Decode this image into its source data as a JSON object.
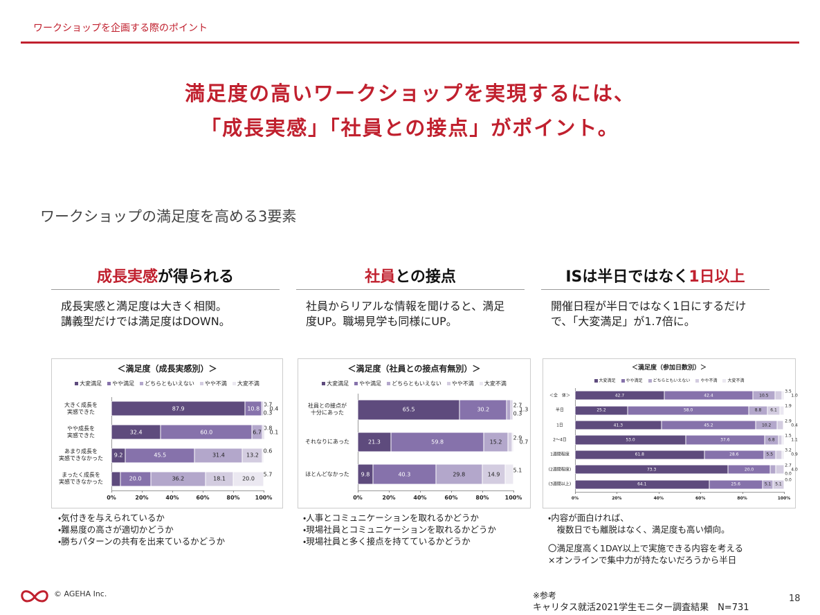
{
  "header": {
    "title": "ワークショップを企画する際のポイント"
  },
  "headline": [
    "満足度の高いワークショップを実現するには、",
    "「成長実感」「社員との接点」がポイント。"
  ],
  "section_title": "ワークショップの満足度を高める3要素",
  "columns": [
    {
      "heading": [
        {
          "text": "成長実感",
          "accent": true
        },
        {
          "text": "が得られる",
          "accent": false
        }
      ],
      "description": "成長実感と満足度は大きく相関。\n講義型だけでは満足度はDOWN。",
      "notes": [
        "・気付きを与えられているか",
        "・難易度の高さが適切かどうか",
        "・勝ちパターンの共有を出来ているかどうか"
      ]
    },
    {
      "heading": [
        {
          "text": "社員",
          "accent": true
        },
        {
          "text": "との接点",
          "accent": false
        }
      ],
      "description": "社員からリアルな情報を聞けると、満足度UP。職場見学も同様にUP。",
      "notes": [
        "・人事とコミュニケーションを取れるかどうか",
        "・現場社員とコミュニケーションを取れるかどうか",
        "・現場社員と多く接点を持てているかどうか"
      ]
    },
    {
      "heading": [
        {
          "text": "ISは半日ではなく",
          "accent": false
        },
        {
          "text": "1日以上",
          "accent": true
        }
      ],
      "description": "開催日程が半日ではなく1日にするだけで、「大変満足」が1.7倍に。",
      "notes": [
        "・内容が面白ければ、\n　複数日でも離脱はなく、満足度も高い傾向。",
        "〇満足度高く1DAY以上で実施できる内容を考える",
        "×オンラインで集中力が持たないだろうから半日"
      ]
    }
  ],
  "chart_data": [
    {
      "type": "bar",
      "orientation": "horizontal",
      "stacked": true,
      "title": "＜満足度（成長実感別）＞",
      "categories": [
        "大きく成長を\n実感できた",
        "やや成長を\n実感できた",
        "あまり成長を\n実感できなかった",
        "まったく成長を\n実感できなかった"
      ],
      "series": [
        {
          "name": "大変満足",
          "color": "#5e4b7d",
          "values": [
            87.9,
            32.4,
            9.2,
            5.7
          ],
          "value_labels": [
            "87.9",
            "32.4",
            "9.2",
            "5.7"
          ]
        },
        {
          "name": "やや満足",
          "color": "#8672ab",
          "values": [
            10.8,
            60,
            45.5,
            20
          ],
          "value_labels": [
            "10.8",
            "60.0",
            "45.5",
            "20.0"
          ]
        },
        {
          "name": "どちらともいえない",
          "color": "#b3a7cb",
          "values": [
            0.7,
            6.7,
            31.4,
            36.2
          ],
          "value_labels": [
            "0.7",
            "6.7",
            "31.4",
            "36.2"
          ]
        },
        {
          "name": "やや不満",
          "color": "#d3cce0",
          "values": [
            0.4,
            0.8,
            13.2,
            18.1
          ],
          "value_labels": [
            "0.4",
            "0.8",
            "13.2",
            "18.1"
          ]
        },
        {
          "name": "大変不満",
          "color": "#ebe8f1",
          "values": [
            0.3,
            0.1,
            0.6,
            20
          ],
          "value_labels": [
            "0.3",
            "0.1",
            "0.6",
            "20.0"
          ]
        }
      ],
      "xlim": [
        0,
        100
      ],
      "xticks": [
        {
          "value": 0,
          "label": "0%"
        },
        {
          "value": 20,
          "label": "20%"
        },
        {
          "value": 40,
          "label": "40%"
        },
        {
          "value": 60,
          "label": "60%"
        },
        {
          "value": 80,
          "label": "80%"
        },
        {
          "value": 100,
          "label": "100%"
        }
      ],
      "legend": "top"
    },
    {
      "type": "bar",
      "orientation": "horizontal",
      "stacked": true,
      "title": "＜満足度（社員との接点有無別）＞",
      "categories": [
        "社員との接点が\n十分にあった",
        "それなりにあった",
        "ほとんどなかった"
      ],
      "series": [
        {
          "name": "大変満足",
          "color": "#5e4b7d",
          "values": [
            65.5,
            21.3,
            9.8
          ],
          "value_labels": [
            "65.5",
            "21.3",
            "9.8"
          ]
        },
        {
          "name": "やや満足",
          "color": "#8672ab",
          "values": [
            30.2,
            59.8,
            40.3
          ],
          "value_labels": [
            "30.2",
            "59.8",
            "40.3"
          ]
        },
        {
          "name": "どちらともいえない",
          "color": "#b3a7cb",
          "values": [
            2.7,
            15.2,
            29.8
          ],
          "value_labels": [
            "2.7",
            "15.2",
            "29.8"
          ]
        },
        {
          "name": "やや不満",
          "color": "#d3cce0",
          "values": [
            1.3,
            2.9,
            14.9
          ],
          "value_labels": [
            "1.3",
            "2.9",
            "14.9"
          ]
        },
        {
          "name": "大変不満",
          "color": "#ebe8f1",
          "values": [
            0.3,
            0.7,
            5.1
          ],
          "value_labels": [
            "0.3",
            "0.7",
            "5.1"
          ]
        }
      ],
      "xlim": [
        0,
        100
      ],
      "xticks": [
        {
          "value": 0,
          "label": "0%"
        },
        {
          "value": 20,
          "label": "20%"
        },
        {
          "value": 40,
          "label": "40%"
        },
        {
          "value": 60,
          "label": "60%"
        },
        {
          "value": 80,
          "label": "80%"
        },
        {
          "value": 100,
          "label": "100%"
        }
      ],
      "legend": "top"
    },
    {
      "type": "bar",
      "orientation": "horizontal",
      "stacked": true,
      "title": "＜満足度（参加日数別）＞",
      "categories": [
        "＜全　体＞",
        "半日",
        "1日",
        "2～4日",
        "1週間程度",
        "(2週間程度)",
        "(3週間以上)"
      ],
      "series": [
        {
          "name": "大変満足",
          "color": "#5e4b7d",
          "values": [
            42.7,
            25.2,
            41.3,
            53,
            61.8,
            73.3,
            64.1
          ],
          "value_labels": [
            "42.7",
            "25.2",
            "41.3",
            "53.0",
            "61.8",
            "73.3",
            "64.1"
          ]
        },
        {
          "name": "やや満足",
          "color": "#8672ab",
          "values": [
            42.4,
            58,
            45.2,
            37.6,
            28.6,
            20,
            25.6
          ],
          "value_labels": [
            "42.4",
            "58.0",
            "45.2",
            "37.6",
            "28.6",
            "20.0",
            "25.6"
          ]
        },
        {
          "name": "どちらともいえない",
          "color": "#b3a7cb",
          "values": [
            10.5,
            8.8,
            10.2,
            6.8,
            5.5,
            2.7,
            5.1
          ],
          "value_labels": [
            "10.5",
            "8.8",
            "10.2",
            "6.8",
            "5.5",
            "2.7",
            "5.1"
          ]
        },
        {
          "name": "やや不満",
          "color": "#d3cce0",
          "values": [
            3.5,
            6.1,
            2.9,
            1.5,
            3.2,
            4,
            5.1
          ],
          "value_labels": [
            "3.5",
            "6.1",
            "2.9",
            "1.5",
            "3.2",
            "4.0",
            "5.1"
          ]
        },
        {
          "name": "大変不満",
          "color": "#ebe8f1",
          "values": [
            1,
            1.9,
            0.4,
            1.1,
            0.9,
            0,
            0
          ],
          "value_labels": [
            "1.0",
            "1.9",
            "0.4",
            "1.1",
            "0.9",
            "0.0",
            "0.0"
          ]
        }
      ],
      "xlim": [
        0,
        100
      ],
      "xticks": [
        {
          "value": 0,
          "label": "0%"
        },
        {
          "value": 20,
          "label": "20%"
        },
        {
          "value": 40,
          "label": "40%"
        },
        {
          "value": 60,
          "label": "60%"
        },
        {
          "value": 80,
          "label": "80%"
        },
        {
          "value": 100,
          "label": "100%"
        }
      ],
      "legend": "top"
    }
  ],
  "footer": {
    "copyright": "© AGEHA Inc.",
    "source_label": "※参考",
    "source": "キャリタス就活2021学生モニター調査結果　N=731",
    "page": "18"
  }
}
